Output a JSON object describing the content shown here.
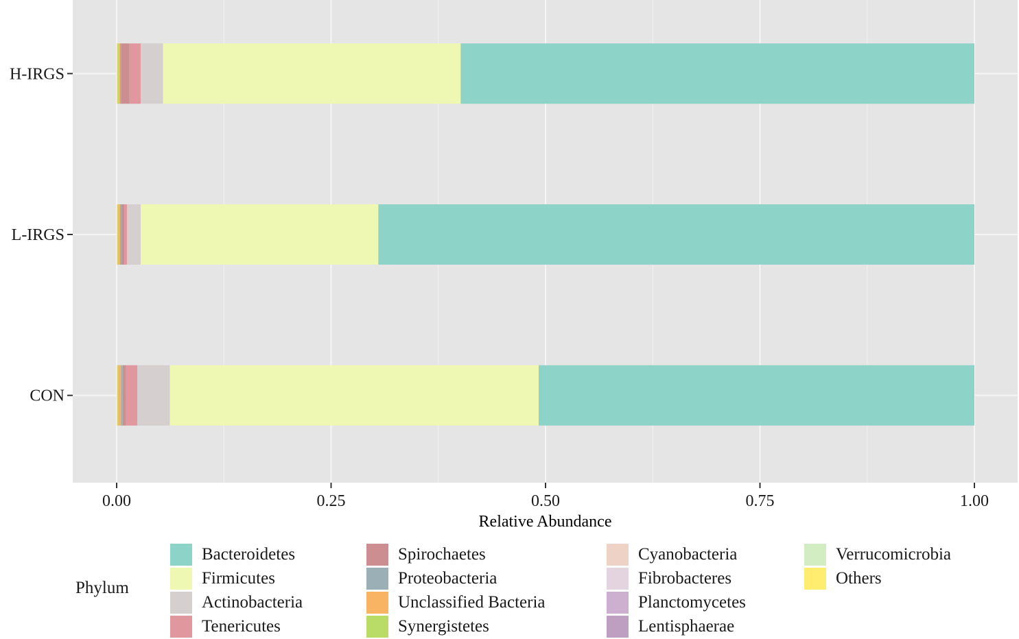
{
  "chart_data": {
    "type": "bar",
    "orientation": "horizontal",
    "stacked": true,
    "xlabel": "Relative Abundance",
    "ylabel": "",
    "xlim": [
      0,
      1
    ],
    "xticks": [
      "0.00",
      "0.25",
      "0.50",
      "0.75",
      "1.00"
    ],
    "categories": [
      "H-IRGS",
      "L-IRGS",
      "CON"
    ],
    "grid": true,
    "legend_title": "Phylum",
    "legend_position": "bottom",
    "series": [
      {
        "name": "Bacteroidetes",
        "color": "#8DD3C7",
        "values": [
          0.599,
          0.695,
          0.508
        ]
      },
      {
        "name": "Firmicutes",
        "color": "#EEF8B3",
        "values": [
          0.347,
          0.277,
          0.43
        ]
      },
      {
        "name": "Actinobacteria",
        "color": "#D5D0CF",
        "values": [
          0.026,
          0.016,
          0.038
        ]
      },
      {
        "name": "Tenericutes",
        "color": "#E0979E",
        "values": [
          0.013,
          0.003,
          0.013
        ]
      },
      {
        "name": "Spirochaetes",
        "color": "#CD8E92",
        "values": [
          0.01,
          0.003,
          0.004
        ]
      },
      {
        "name": "Proteobacteria",
        "color": "#9AAFB6",
        "values": [
          0.001,
          0.002,
          0.002
        ]
      },
      {
        "name": "Unclassified Bacteria",
        "color": "#F9B463",
        "values": [
          0.001,
          0.002,
          0.003
        ]
      },
      {
        "name": "Synergistetes",
        "color": "#B8DC65",
        "values": [
          0.002,
          0.001,
          0.001
        ]
      },
      {
        "name": "Cyanobacteria",
        "color": "#EED2C6",
        "values": [
          0.0003,
          0.0003,
          0.0003
        ]
      },
      {
        "name": "Fibrobacteres",
        "color": "#E4D4E0",
        "values": [
          0.0003,
          0.0003,
          0.0003
        ]
      },
      {
        "name": "Planctomycetes",
        "color": "#CDB0D0",
        "values": [
          0.0003,
          0.0003,
          0.0003
        ]
      },
      {
        "name": "Lentisphaerae",
        "color": "#BF9FC1",
        "values": [
          0.0003,
          0.0003,
          0.0003
        ]
      },
      {
        "name": "Verrucomicrobia",
        "color": "#D3EDC2",
        "values": [
          0.0003,
          0.0003,
          0.0003
        ]
      },
      {
        "name": "Others",
        "color": "#FFED6F",
        "values": [
          0.0003,
          0.0003,
          0.0003
        ]
      }
    ]
  }
}
